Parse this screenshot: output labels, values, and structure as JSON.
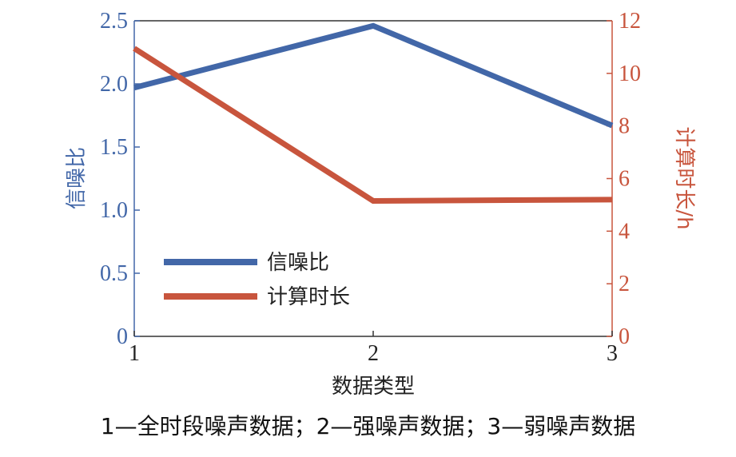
{
  "chart_data": {
    "type": "line",
    "x": [
      1,
      2,
      3
    ],
    "xlabel": "数据类型",
    "xticks": [
      "1",
      "2",
      "3"
    ],
    "xlim": [
      1,
      3
    ],
    "left_axis": {
      "label": "信噪比",
      "ylim": [
        0,
        2.5
      ],
      "ticks": [
        "0",
        "0.5",
        "1.0",
        "1.5",
        "2.0",
        "2.5"
      ],
      "color": "#4267a8"
    },
    "right_axis": {
      "label": "计算时长/h",
      "ylim": [
        0,
        12
      ],
      "ticks": [
        "0",
        "2",
        "4",
        "6",
        "8",
        "10",
        "12"
      ],
      "color": "#c8553d"
    },
    "series": [
      {
        "name": "信噪比",
        "axis": "left",
        "color": "#4267a8",
        "values": [
          1.97,
          2.46,
          1.67
        ]
      },
      {
        "name": "计算时长",
        "axis": "right",
        "color": "#c8553d",
        "values": [
          10.95,
          5.15,
          5.2
        ]
      }
    ],
    "legend_position": "lower-left",
    "grid": false
  },
  "caption": "1—全时段噪声数据；2—强噪声数据；3—弱噪声数据"
}
